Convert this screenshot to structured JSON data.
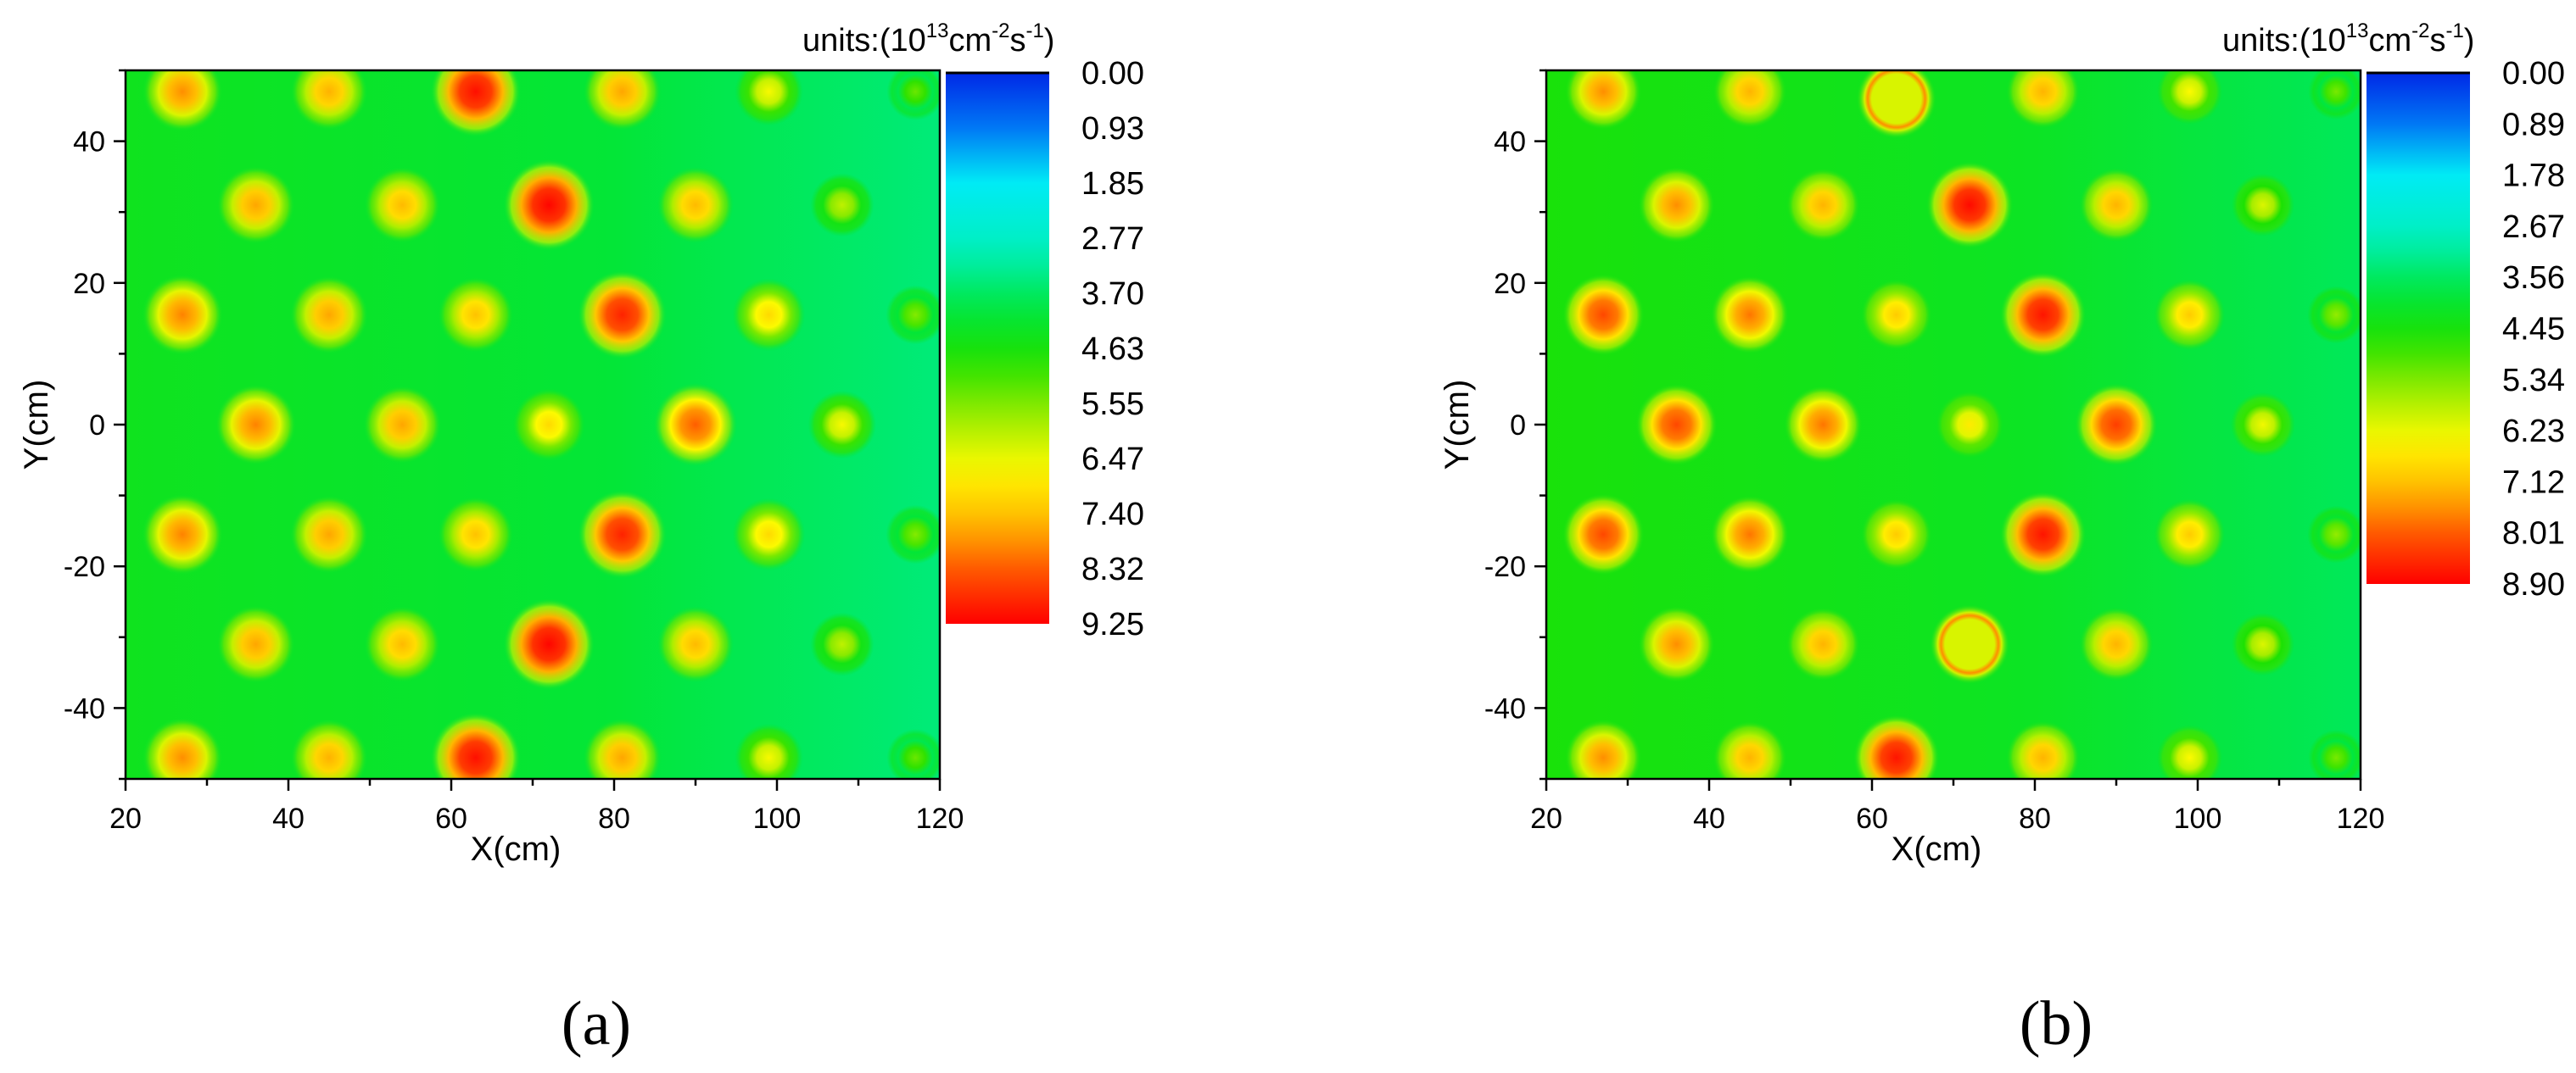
{
  "chart_data": [
    {
      "type": "heatmap",
      "panel_label": "(a)",
      "xlabel": "X(cm)",
      "ylabel": "Y(cm)",
      "xlim": [
        20,
        120
      ],
      "ylim": [
        -50,
        50
      ],
      "xticks": [
        "20",
        "40",
        "60",
        "80",
        "100",
        "120"
      ],
      "yticks": [
        "40",
        "20",
        "0",
        "-20",
        "-40"
      ],
      "units_label": {
        "prefix": "units:(10",
        "exp13": "13",
        "cm": "cm",
        "expm2": "-2",
        "s": "s",
        "expm1": "-1",
        "close": ")"
      },
      "colorbar_ticks": [
        "0.00",
        "0.93",
        "1.85",
        "2.77",
        "3.70",
        "4.63",
        "5.55",
        "6.47",
        "7.40",
        "8.32",
        "9.25"
      ],
      "colorbar_range": [
        0,
        9.25
      ],
      "background_level": 3.7,
      "peaks": [
        {
          "x": 27,
          "y": 47,
          "v": 7.9
        },
        {
          "x": 45,
          "y": 47,
          "v": 7.6
        },
        {
          "x": 63,
          "y": 47,
          "v": 9.1
        },
        {
          "x": 81,
          "y": 47,
          "v": 7.7
        },
        {
          "x": 99,
          "y": 47,
          "v": 6.6
        },
        {
          "x": 117,
          "y": 47,
          "v": 5.4
        },
        {
          "x": 36,
          "y": 31,
          "v": 7.7
        },
        {
          "x": 54,
          "y": 31,
          "v": 7.5
        },
        {
          "x": 72,
          "y": 31,
          "v": 9.2
        },
        {
          "x": 90,
          "y": 31,
          "v": 7.5
        },
        {
          "x": 108,
          "y": 31,
          "v": 6.1
        },
        {
          "x": 27,
          "y": 15.5,
          "v": 8.0
        },
        {
          "x": 45,
          "y": 15.5,
          "v": 7.7
        },
        {
          "x": 63,
          "y": 15.5,
          "v": 7.4
        },
        {
          "x": 81,
          "y": 15.5,
          "v": 8.9
        },
        {
          "x": 99,
          "y": 15.5,
          "v": 7.1
        },
        {
          "x": 117,
          "y": 15.5,
          "v": 5.6
        },
        {
          "x": 36,
          "y": 0,
          "v": 8.0
        },
        {
          "x": 54,
          "y": 0,
          "v": 7.7
        },
        {
          "x": 72,
          "y": 0,
          "v": 7.1
        },
        {
          "x": 90,
          "y": 0,
          "v": 8.3
        },
        {
          "x": 108,
          "y": 0,
          "v": 6.6
        },
        {
          "x": 27,
          "y": -15.5,
          "v": 8.0
        },
        {
          "x": 45,
          "y": -15.5,
          "v": 7.7
        },
        {
          "x": 63,
          "y": -15.5,
          "v": 7.4
        },
        {
          "x": 81,
          "y": -15.5,
          "v": 8.9
        },
        {
          "x": 99,
          "y": -15.5,
          "v": 7.1
        },
        {
          "x": 117,
          "y": -15.5,
          "v": 5.6
        },
        {
          "x": 36,
          "y": -31,
          "v": 7.7
        },
        {
          "x": 54,
          "y": -31,
          "v": 7.5
        },
        {
          "x": 72,
          "y": -31,
          "v": 9.2
        },
        {
          "x": 90,
          "y": -31,
          "v": 7.5
        },
        {
          "x": 108,
          "y": -31,
          "v": 6.1
        },
        {
          "x": 27,
          "y": -47,
          "v": 7.9
        },
        {
          "x": 45,
          "y": -47,
          "v": 7.6
        },
        {
          "x": 63,
          "y": -47,
          "v": 9.1
        },
        {
          "x": 81,
          "y": -47,
          "v": 7.7
        },
        {
          "x": 99,
          "y": -47,
          "v": 6.6
        },
        {
          "x": 117,
          "y": -47,
          "v": 5.4
        }
      ]
    },
    {
      "type": "heatmap",
      "panel_label": "(b)",
      "xlabel": "X(cm)",
      "ylabel": "Y(cm)",
      "xlim": [
        20,
        120
      ],
      "ylim": [
        -50,
        50
      ],
      "xticks": [
        "20",
        "40",
        "60",
        "80",
        "100",
        "120"
      ],
      "yticks": [
        "40",
        "20",
        "0",
        "-20",
        "-40"
      ],
      "units_label": {
        "prefix": "units:(10",
        "exp13": "13",
        "cm": "cm",
        "expm2": "-2",
        "s": "s",
        "expm1": "-1",
        "close": ")"
      },
      "colorbar_ticks": [
        "0.00",
        "0.89",
        "1.78",
        "2.67",
        "3.56",
        "4.45",
        "5.34",
        "6.23",
        "7.12",
        "8.01",
        "8.90"
      ],
      "colorbar_range": [
        0,
        8.9
      ],
      "background_level": 3.8,
      "peaks": [
        {
          "x": 27,
          "y": 47,
          "v": 7.6
        },
        {
          "x": 45,
          "y": 47,
          "v": 7.3
        },
        {
          "x": 63,
          "y": 46,
          "v": 6.2,
          "ring": true
        },
        {
          "x": 81,
          "y": 47,
          "v": 7.3
        },
        {
          "x": 99,
          "y": 47,
          "v": 6.4
        },
        {
          "x": 117,
          "y": 47,
          "v": 5.3
        },
        {
          "x": 36,
          "y": 31,
          "v": 7.6
        },
        {
          "x": 54,
          "y": 31,
          "v": 7.3
        },
        {
          "x": 72,
          "y": 31,
          "v": 8.8
        },
        {
          "x": 90,
          "y": 31,
          "v": 7.3
        },
        {
          "x": 108,
          "y": 31,
          "v": 6.1
        },
        {
          "x": 27,
          "y": 15.5,
          "v": 8.2
        },
        {
          "x": 45,
          "y": 15.5,
          "v": 7.8
        },
        {
          "x": 63,
          "y": 15.5,
          "v": 7.0
        },
        {
          "x": 81,
          "y": 15.5,
          "v": 8.7
        },
        {
          "x": 99,
          "y": 15.5,
          "v": 7.0
        },
        {
          "x": 117,
          "y": 15.5,
          "v": 5.5
        },
        {
          "x": 36,
          "y": 0,
          "v": 8.2
        },
        {
          "x": 54,
          "y": 0,
          "v": 7.8
        },
        {
          "x": 72,
          "y": 0,
          "v": 6.6
        },
        {
          "x": 90,
          "y": 0,
          "v": 8.3
        },
        {
          "x": 108,
          "y": 0,
          "v": 6.3
        },
        {
          "x": 27,
          "y": -15.5,
          "v": 8.2
        },
        {
          "x": 45,
          "y": -15.5,
          "v": 7.8
        },
        {
          "x": 63,
          "y": -15.5,
          "v": 7.0
        },
        {
          "x": 81,
          "y": -15.5,
          "v": 8.7
        },
        {
          "x": 99,
          "y": -15.5,
          "v": 7.0
        },
        {
          "x": 117,
          "y": -15.5,
          "v": 5.5
        },
        {
          "x": 36,
          "y": -31,
          "v": 7.6
        },
        {
          "x": 54,
          "y": -31,
          "v": 7.3
        },
        {
          "x": 72,
          "y": -31,
          "v": 6.2,
          "ring": true
        },
        {
          "x": 90,
          "y": -31,
          "v": 7.3
        },
        {
          "x": 108,
          "y": -31,
          "v": 6.1
        },
        {
          "x": 27,
          "y": -47,
          "v": 7.6
        },
        {
          "x": 45,
          "y": -47,
          "v": 7.3
        },
        {
          "x": 63,
          "y": -47,
          "v": 8.7
        },
        {
          "x": 81,
          "y": -47,
          "v": 7.3
        },
        {
          "x": 99,
          "y": -47,
          "v": 6.4
        },
        {
          "x": 117,
          "y": -47,
          "v": 5.3
        }
      ]
    }
  ]
}
